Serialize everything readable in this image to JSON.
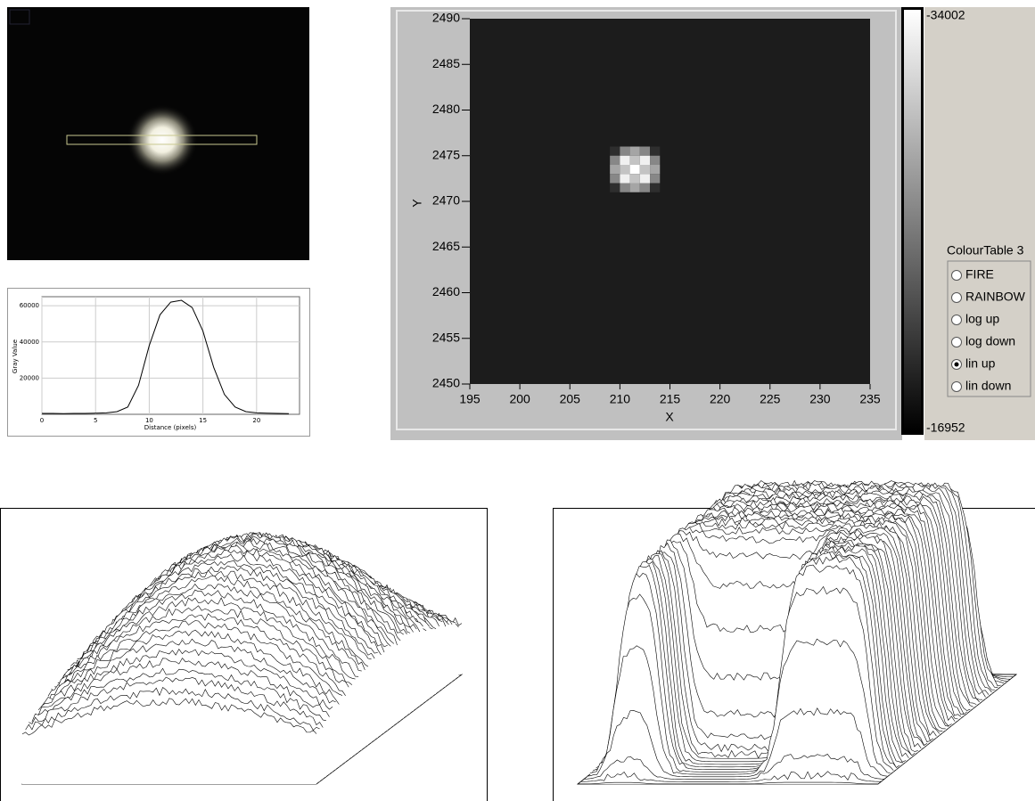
{
  "chart_data": [
    {
      "type": "line",
      "x_label": "Distance (pixels)",
      "y_label": "Gray Value",
      "x": [
        0,
        1,
        2,
        3,
        4,
        5,
        6,
        7,
        8,
        9,
        10,
        11,
        12,
        13,
        14,
        15,
        16,
        17,
        18,
        19,
        20,
        21,
        22,
        23
      ],
      "values": [
        500,
        500,
        400,
        500,
        500,
        600,
        800,
        1500,
        4000,
        16000,
        38000,
        55000,
        62000,
        63000,
        59000,
        46000,
        26000,
        11000,
        4000,
        1500,
        800,
        600,
        500,
        400
      ],
      "color": "#000000",
      "xlim": [
        0,
        24
      ],
      "xticks": [
        0,
        5,
        10,
        15,
        20
      ],
      "ylim": [
        0,
        65000
      ],
      "yticks": [
        20000,
        40000,
        60000
      ],
      "grid": true
    },
    {
      "type": "heatmap",
      "x_label": "X",
      "y_label": "Y",
      "x": [
        209,
        210,
        211,
        212,
        213
      ],
      "y": [
        2475,
        2474,
        2473,
        2472,
        2471
      ],
      "z": [
        [
          -20000,
          -26000,
          -28000,
          -26000,
          -20000
        ],
        [
          -26000,
          -33000,
          -30000,
          -33000,
          -26000
        ],
        [
          -28000,
          -30000,
          -34000,
          -30000,
          -28000
        ],
        [
          -26000,
          -33000,
          -30000,
          -33000,
          -26000
        ],
        [
          -20000,
          -26000,
          -28000,
          -26000,
          -20000
        ]
      ],
      "zlim": [
        -16952,
        -34002
      ],
      "xlim": [
        195,
        235
      ],
      "xticks": [
        195,
        200,
        205,
        210,
        215,
        220,
        225,
        230,
        235
      ],
      "ylim": [
        2450,
        2490
      ],
      "yticks": [
        2450,
        2455,
        2460,
        2465,
        2470,
        2475,
        2480,
        2485,
        2490
      ]
    }
  ],
  "controls": {
    "title": "ColourTable 3",
    "options": [
      "FIRE",
      "RAINBOW",
      "log up",
      "log down",
      "lin up",
      "lin down"
    ],
    "selected": 4
  }
}
